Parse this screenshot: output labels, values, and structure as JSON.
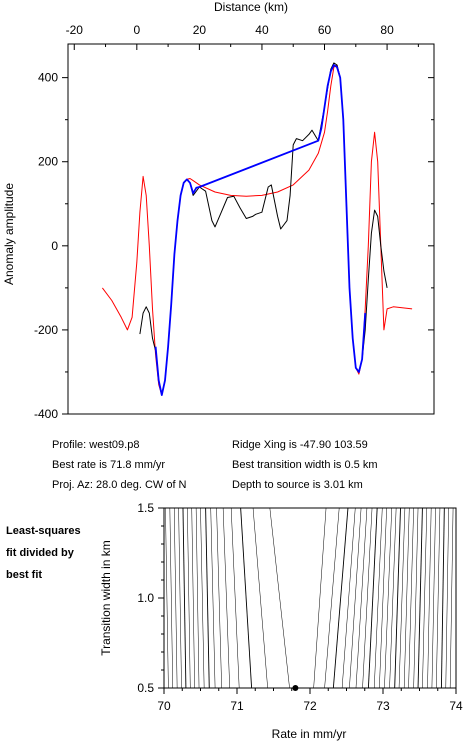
{
  "chart_data": [
    {
      "type": "line",
      "xlabel": "Distance (km)",
      "ylabel": "Anomaly amplitude",
      "xlim": [
        -22,
        95
      ],
      "ylim": [
        -400,
        480
      ],
      "x_ticks": [
        -20,
        0,
        20,
        40,
        60,
        80
      ],
      "y_ticks": [
        -400,
        -200,
        0,
        200,
        400
      ],
      "grid": false,
      "series": [
        {
          "color": "#ff0000",
          "points": [
            [
              -11,
              -100
            ],
            [
              -8,
              -130
            ],
            [
              -5,
              -170
            ],
            [
              -3,
              -200
            ],
            [
              -1.5,
              -170
            ],
            [
              0,
              -40
            ],
            [
              1,
              80
            ],
            [
              2,
              165
            ],
            [
              3,
              120
            ],
            [
              4,
              0
            ],
            [
              5,
              -150
            ],
            [
              6,
              -260
            ],
            [
              7,
              -330
            ],
            [
              8,
              -355
            ],
            [
              9,
              -320
            ],
            [
              10,
              -240
            ],
            [
              11,
              -140
            ],
            [
              12,
              -20
            ],
            [
              13,
              60
            ],
            [
              14,
              120
            ],
            [
              15,
              150
            ],
            [
              16,
              158
            ],
            [
              17,
              160
            ],
            [
              18,
              155
            ],
            [
              20,
              145
            ],
            [
              25,
              128
            ],
            [
              30,
              120
            ],
            [
              35,
              118
            ],
            [
              40,
              120
            ],
            [
              45,
              128
            ],
            [
              50,
              145
            ],
            [
              55,
              180
            ],
            [
              58,
              220
            ],
            [
              60,
              270
            ],
            [
              61,
              320
            ],
            [
              62,
              380
            ],
            [
              63,
              425
            ],
            [
              64,
              430
            ],
            [
              65,
              400
            ],
            [
              66,
              300
            ],
            [
              67,
              100
            ],
            [
              68,
              -100
            ],
            [
              69,
              -220
            ],
            [
              70,
              -290
            ],
            [
              71,
              -305
            ],
            [
              72,
              -270
            ],
            [
              73,
              -150
            ],
            [
              74,
              0
            ],
            [
              75,
              200
            ],
            [
              76,
              270
            ],
            [
              77,
              200
            ],
            [
              78,
              0
            ],
            [
              79,
              -200
            ],
            [
              80,
              -150
            ],
            [
              82,
              -145
            ],
            [
              88,
              -150
            ]
          ]
        },
        {
          "color": "#000000",
          "points": [
            [
              1,
              -210
            ],
            [
              2,
              -160
            ],
            [
              3,
              -145
            ],
            [
              4,
              -160
            ],
            [
              5,
              -220
            ],
            [
              6,
              -250
            ],
            [
              7,
              -320
            ],
            [
              8,
              -355
            ],
            [
              9,
              -320
            ],
            [
              10,
              -240
            ],
            [
              11,
              -140
            ],
            [
              12,
              -20
            ],
            [
              13,
              60
            ],
            [
              14,
              120
            ],
            [
              15,
              150
            ],
            [
              16,
              158
            ],
            [
              17,
              150
            ],
            [
              18,
              120
            ],
            [
              19,
              130
            ],
            [
              20,
              140
            ],
            [
              22,
              130
            ],
            [
              24,
              60
            ],
            [
              25,
              45
            ],
            [
              27,
              80
            ],
            [
              29,
              115
            ],
            [
              31,
              118
            ],
            [
              33,
              90
            ],
            [
              35,
              65
            ],
            [
              37,
              70
            ],
            [
              38,
              75
            ],
            [
              40,
              80
            ],
            [
              42,
              140
            ],
            [
              43,
              145
            ],
            [
              45,
              70
            ],
            [
              46,
              40
            ],
            [
              48,
              60
            ],
            [
              49,
              120
            ],
            [
              50,
              240
            ],
            [
              51,
              255
            ],
            [
              53,
              250
            ],
            [
              55,
              265
            ],
            [
              56,
              275
            ],
            [
              58,
              250
            ],
            [
              59,
              290
            ],
            [
              60,
              330
            ],
            [
              62,
              420
            ],
            [
              63,
              435
            ],
            [
              64,
              430
            ],
            [
              65,
              400
            ],
            [
              66,
              300
            ],
            [
              67,
              100
            ],
            [
              68,
              -100
            ],
            [
              69,
              -220
            ],
            [
              70,
              -290
            ],
            [
              71,
              -300
            ],
            [
              72,
              -270
            ],
            [
              73,
              -200
            ],
            [
              74,
              -80
            ],
            [
              75,
              30
            ],
            [
              76,
              85
            ],
            [
              77,
              70
            ],
            [
              78,
              0
            ],
            [
              79,
              -60
            ],
            [
              80,
              -100
            ]
          ]
        },
        {
          "color": "#0000ff",
          "points": [
            [
              6,
              -240
            ],
            [
              7,
              -320
            ],
            [
              8,
              -355
            ],
            [
              9,
              -320
            ],
            [
              10,
              -240
            ],
            [
              11,
              -140
            ],
            [
              12,
              -20
            ],
            [
              13,
              60
            ],
            [
              14,
              120
            ],
            [
              15,
              150
            ],
            [
              16,
              158
            ],
            [
              17,
              150
            ],
            [
              18,
              125
            ],
            [
              19,
              138
            ],
            [
              20,
              140
            ],
            [
              58,
              250
            ],
            [
              59,
              280
            ],
            [
              60,
              330
            ],
            [
              61,
              380
            ],
            [
              62,
              415
            ],
            [
              63,
              430
            ],
            [
              64,
              425
            ],
            [
              65,
              400
            ],
            [
              66,
              300
            ],
            [
              67,
              100
            ],
            [
              68,
              -100
            ],
            [
              69,
              -220
            ],
            [
              70,
              -290
            ],
            [
              71,
              -300
            ],
            [
              72,
              -270
            ],
            [
              73,
              -160
            ]
          ]
        }
      ]
    },
    {
      "type": "line",
      "xlabel": "Rate in mm/yr",
      "ylabel": "Transition width in km",
      "xlim": [
        70,
        74
      ],
      "ylim": [
        0.5,
        1.5
      ],
      "x_ticks": [
        70,
        71,
        72,
        73,
        74
      ],
      "y_ticks": [
        0.5,
        1.0,
        1.5
      ],
      "grid": false,
      "best_fit": {
        "x": 71.8,
        "y": 0.5
      },
      "contour_lines": [
        [
          70.02,
          70.06
        ],
        [
          70.08,
          70.12
        ],
        [
          70.14,
          70.18
        ],
        [
          70.2,
          70.24
        ],
        [
          70.26,
          70.3
        ],
        [
          70.32,
          70.36
        ],
        [
          70.38,
          70.42
        ],
        [
          70.44,
          70.48
        ],
        [
          70.5,
          70.55
        ],
        [
          70.57,
          70.62
        ],
        [
          70.64,
          70.7
        ],
        [
          70.72,
          70.79
        ],
        [
          70.81,
          70.9
        ],
        [
          70.92,
          71.03
        ],
        [
          71.05,
          71.2
        ],
        [
          71.22,
          71.42
        ],
        [
          71.45,
          71.72
        ],
        [
          72.22,
          72.05
        ],
        [
          72.4,
          72.2
        ],
        [
          72.52,
          72.32
        ],
        [
          72.62,
          72.44
        ],
        [
          72.7,
          72.54
        ],
        [
          72.78,
          72.63
        ],
        [
          72.85,
          72.72
        ],
        [
          72.92,
          72.8
        ],
        [
          72.99,
          72.88
        ],
        [
          73.05,
          72.95
        ],
        [
          73.12,
          73.02
        ],
        [
          73.18,
          73.09
        ],
        [
          73.24,
          73.16
        ],
        [
          73.3,
          73.22
        ],
        [
          73.36,
          73.29
        ],
        [
          73.42,
          73.35
        ],
        [
          73.48,
          73.42
        ],
        [
          73.54,
          73.48
        ],
        [
          73.6,
          73.54
        ],
        [
          73.66,
          73.61
        ],
        [
          73.72,
          73.67
        ],
        [
          73.78,
          73.73
        ],
        [
          73.84,
          73.8
        ],
        [
          73.9,
          73.86
        ],
        [
          73.96,
          73.92
        ]
      ]
    }
  ],
  "info": {
    "profile": "Profile: west09.p8",
    "ridge": "Ridge Xing is -47.90 103.59",
    "rate": "Best rate is 71.8 mm/yr",
    "transition": "Best transition width is 0.5 km",
    "azimuth": "Proj. Az: 28.0 deg. CW of N",
    "depth": "Depth to source is   3.01 km"
  },
  "side_note": [
    "Least-squares",
    "fit divided by",
    "best fit"
  ]
}
